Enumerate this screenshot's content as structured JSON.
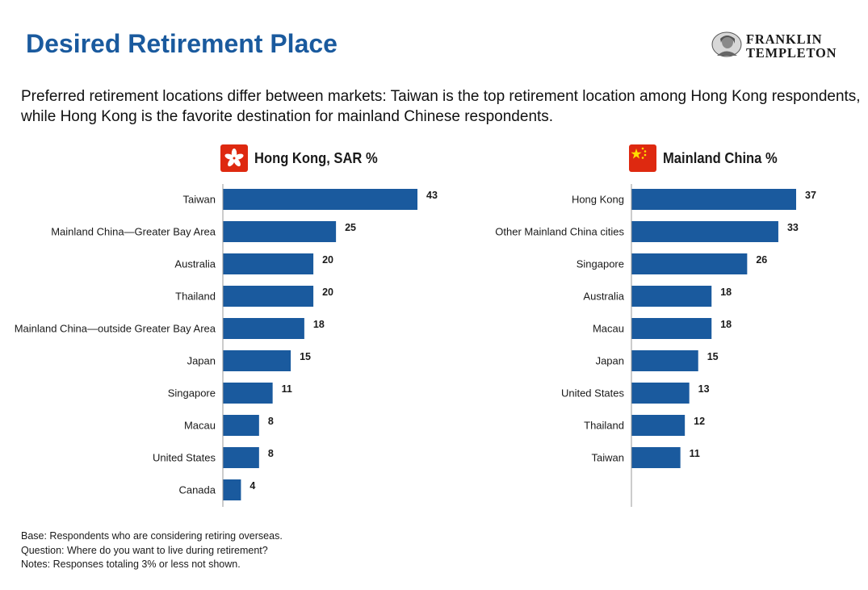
{
  "title": "Desired Retirement Place",
  "logo": {
    "line1": "FRANKLIN",
    "line2": "TEMPLETON"
  },
  "subtitle": "Preferred retirement locations differ between markets: Taiwan is the top retirement location among Hong Kong respondents, while Hong Kong is the favorite destination for mainland Chinese respondents.",
  "colors": {
    "title": "#1a5a9e",
    "bar": "#1a5a9e",
    "flag_red": "#de2910",
    "flag_yellow": "#ffde00"
  },
  "notes": [
    "Base: Respondents who are considering retiring overseas.",
    "Question: Where do you want to live during retirement?",
    "Notes: Responses totaling 3% or less not shown."
  ],
  "chart_data": [
    {
      "type": "bar",
      "orientation": "horizontal",
      "title": "Hong Kong, SAR %",
      "icon": "hong-kong-flag-icon",
      "categories": [
        "Taiwan",
        "Mainland China—Greater Bay Area",
        "Australia",
        "Thailand",
        "Mainland China—outside Greater Bay Area",
        "Japan",
        "Singapore",
        "Macau",
        "United States",
        "Canada"
      ],
      "values": [
        43,
        25,
        20,
        20,
        18,
        15,
        11,
        8,
        8,
        4
      ],
      "xlim": [
        0,
        43
      ],
      "grid": false
    },
    {
      "type": "bar",
      "orientation": "horizontal",
      "title": "Mainland China %",
      "icon": "china-flag-icon",
      "categories": [
        "Hong Kong",
        "Other Mainland China cities",
        "Singapore",
        "Australia",
        "Macau",
        "Japan",
        "United States",
        "Thailand",
        "Taiwan"
      ],
      "values": [
        37,
        33,
        26,
        18,
        18,
        15,
        13,
        12,
        11
      ],
      "xlim": [
        0,
        37
      ],
      "grid": false
    }
  ]
}
